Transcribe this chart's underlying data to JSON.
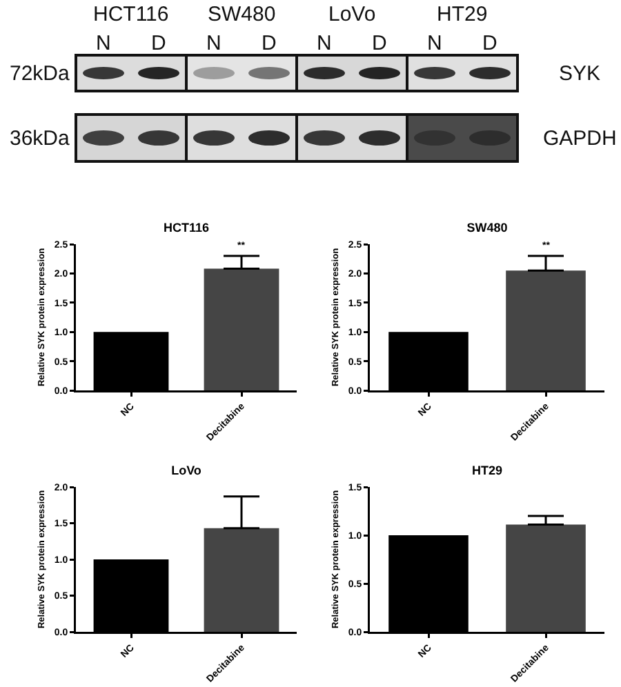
{
  "chart_data": [
    {
      "type": "other",
      "annotations": [
        "HCT116",
        "SW480",
        "LoVo",
        "HT29",
        "N",
        "D",
        "N",
        "D",
        "N",
        "D",
        "N",
        "D",
        "72kDa",
        "36kDa",
        "SYK",
        "GAPDH"
      ]
    },
    {
      "type": "bar",
      "title": "HCT116",
      "ylabel": "Relative SYK protein expression",
      "categories": [
        "NC",
        "Decitabine"
      ],
      "values": [
        1.0,
        2.08
      ],
      "colors": [
        "#000000",
        "#454545"
      ],
      "errors": [
        null,
        [
          2.08,
          2.3
        ]
      ],
      "ylim": [
        0,
        2.5
      ],
      "yticks": [
        {
          "value": 0,
          "label": "0.0"
        },
        0.5,
        {
          "value": 1,
          "label": "1.0"
        },
        1.5,
        {
          "value": 2,
          "label": "2.0"
        },
        2.5
      ],
      "annotations": [
        {
          "text": "**",
          "x": "Decitabine",
          "y": 2.3
        }
      ]
    },
    {
      "type": "bar",
      "title": "SW480",
      "ylabel": "Relative SYK protein expression",
      "categories": [
        "NC",
        "Decitabine"
      ],
      "values": [
        1.0,
        2.05
      ],
      "colors": [
        "#000000",
        "#454545"
      ],
      "errors": [
        null,
        [
          2.05,
          2.3
        ]
      ],
      "ylim": [
        0,
        2.5
      ],
      "yticks": [
        {
          "value": 0,
          "label": "0.0"
        },
        0.5,
        {
          "value": 1,
          "label": "1.0"
        },
        1.5,
        {
          "value": 2,
          "label": "2.0"
        },
        2.5
      ],
      "annotations": [
        {
          "text": "**",
          "x": "Decitabine",
          "y": 2.3
        }
      ]
    },
    {
      "type": "bar",
      "title": "LoVo",
      "ylabel": "Relative SYK protein expression",
      "categories": [
        "NC",
        "Decitabine"
      ],
      "values": [
        1.0,
        1.43
      ],
      "colors": [
        "#000000",
        "#454545"
      ],
      "errors": [
        null,
        [
          1.43,
          1.87
        ]
      ],
      "ylim": [
        0,
        2.0
      ],
      "yticks": [
        {
          "value": 0,
          "label": "0.0"
        },
        0.5,
        {
          "value": 1,
          "label": "1.0"
        },
        1.5,
        {
          "value": 2,
          "label": "2.0"
        }
      ]
    },
    {
      "type": "bar",
      "title": "HT29",
      "ylabel": "Relative SYK protein expression",
      "categories": [
        "NC",
        "Decitabine"
      ],
      "values": [
        1.0,
        1.11
      ],
      "colors": [
        "#000000",
        "#454545"
      ],
      "errors": [
        null,
        [
          1.11,
          1.2
        ]
      ],
      "ylim": [
        0,
        1.5
      ],
      "yticks": [
        {
          "value": 0,
          "label": "0.0"
        },
        0.5,
        {
          "value": 1,
          "label": "1.0"
        },
        1.5
      ]
    }
  ]
}
